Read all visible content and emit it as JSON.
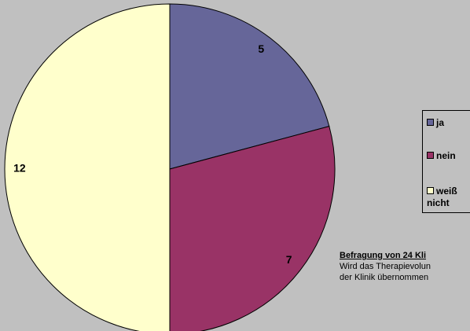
{
  "chart_data": {
    "type": "pie",
    "categories": [
      "ja",
      "nein",
      "weiß nicht"
    ],
    "values": [
      5,
      7,
      12
    ],
    "colors": [
      "#666699",
      "#993366",
      "#ffffcc"
    ],
    "legend": "right",
    "annotation_title": "Befragung von 24 Kli",
    "annotation_lines": [
      "Wird das Therapievolun",
      "der Klinik übernommen"
    ]
  }
}
